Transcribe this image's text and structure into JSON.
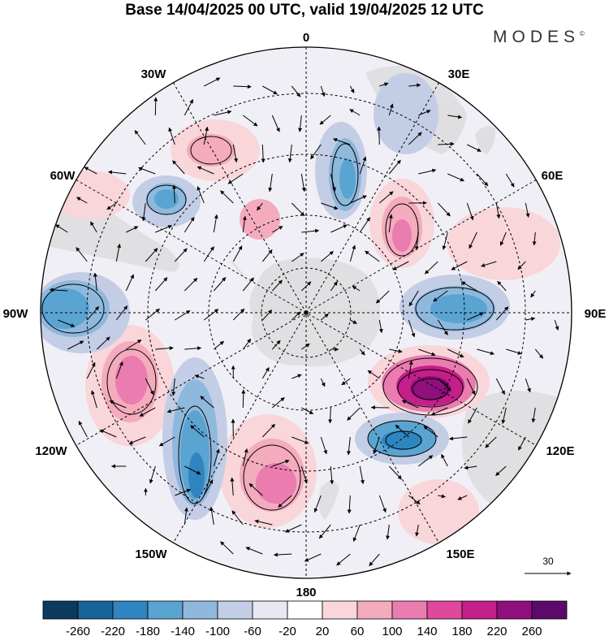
{
  "title": "Base 14/04/2025 00 UTC, valid 19/04/2025 12 UTC",
  "brand": "MODES",
  "brand_mark": "©",
  "longitude_labels": [
    {
      "id": "0",
      "text": "0"
    },
    {
      "id": "30e",
      "text": "30E"
    },
    {
      "id": "60e",
      "text": "60E"
    },
    {
      "id": "90e",
      "text": "90E"
    },
    {
      "id": "120e",
      "text": "120E"
    },
    {
      "id": "150e",
      "text": "150E"
    },
    {
      "id": "180",
      "text": "180"
    },
    {
      "id": "150w",
      "text": "150W"
    },
    {
      "id": "120w",
      "text": "120W"
    },
    {
      "id": "90w",
      "text": "90W"
    },
    {
      "id": "60w",
      "text": "60W"
    },
    {
      "id": "30w",
      "text": "30W"
    }
  ],
  "vector_reference": {
    "value": "30"
  },
  "colorbar": {
    "colors": [
      "#0b3a5c",
      "#17639a",
      "#2f85bf",
      "#5aa4d2",
      "#8fb8dd",
      "#c3cde6",
      "#e9e7f3",
      "#ffffff",
      "#f8d6da",
      "#f3abbd",
      "#ea7cb0",
      "#e0489c",
      "#c41f8a",
      "#8f0f7d",
      "#5b0a6c"
    ],
    "tick_labels": [
      "-260",
      "-220",
      "-180",
      "-140",
      "-100",
      "-60",
      "-20",
      "20",
      "60",
      "100",
      "140",
      "180",
      "220",
      "260"
    ]
  }
}
